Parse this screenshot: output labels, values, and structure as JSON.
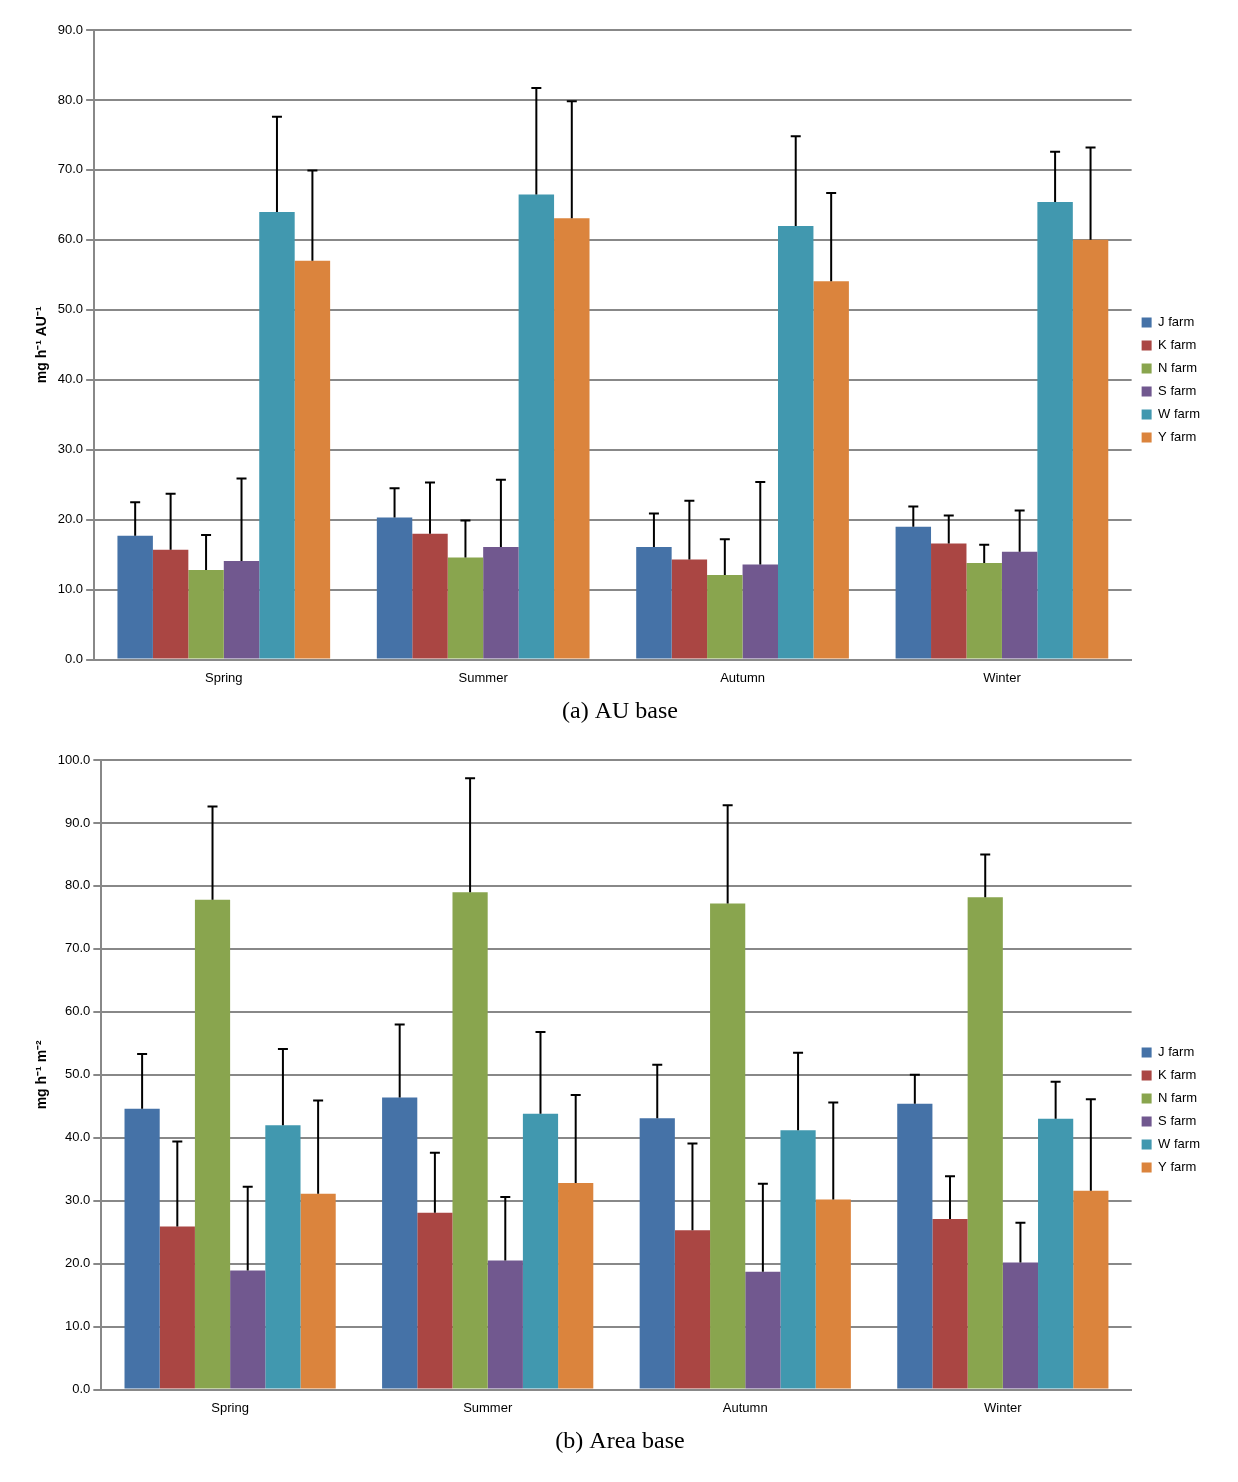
{
  "chart_data": [
    {
      "type": "bar",
      "title": "(a) AU base",
      "y_label": "mg h⁻¹ AU⁻¹",
      "categories": [
        "Spring",
        "Summer",
        "Autumn",
        "Winter"
      ],
      "series": [
        {
          "name": "J farm",
          "color": "#4572A7",
          "values": [
            17.7,
            20.3,
            16.1,
            19.0
          ],
          "errors": [
            4.8,
            4.2,
            4.8,
            2.9
          ]
        },
        {
          "name": "K farm",
          "color": "#AA4643",
          "values": [
            15.7,
            18.0,
            14.3,
            16.6
          ],
          "errors": [
            8.0,
            7.3,
            8.4,
            4.0
          ]
        },
        {
          "name": "N farm",
          "color": "#89A54E",
          "values": [
            12.8,
            14.6,
            12.1,
            13.8
          ],
          "errors": [
            5.0,
            5.3,
            5.1,
            2.6
          ]
        },
        {
          "name": "S farm",
          "color": "#71588F",
          "values": [
            14.1,
            16.1,
            13.6,
            15.4
          ],
          "errors": [
            11.8,
            9.6,
            11.8,
            5.9
          ]
        },
        {
          "name": "W farm",
          "color": "#4198AF",
          "values": [
            64.0,
            66.5,
            62.0,
            65.4
          ],
          "errors": [
            13.6,
            15.2,
            12.8,
            7.2
          ]
        },
        {
          "name": "Y farm",
          "color": "#DB843D",
          "values": [
            57.0,
            63.1,
            54.1,
            60.0
          ],
          "errors": [
            12.9,
            16.7,
            12.6,
            13.2
          ]
        }
      ],
      "ylim": [
        0,
        90
      ],
      "yticks": [
        {
          "value": 0,
          "label": "0.0"
        },
        {
          "value": 10,
          "label": "10.0"
        },
        {
          "value": 20,
          "label": "20.0"
        },
        {
          "value": 30,
          "label": "30.0"
        },
        {
          "value": 40,
          "label": "40.0"
        },
        {
          "value": 50,
          "label": "50.0"
        },
        {
          "value": 60,
          "label": "60.0"
        },
        {
          "value": 70,
          "label": "70.0"
        },
        {
          "value": 80,
          "label": "80.0"
        },
        {
          "value": 90,
          "label": "90.0"
        }
      ],
      "grid": true,
      "legend": "right"
    },
    {
      "type": "bar",
      "title": "(b) Area base",
      "y_label": "mg h⁻¹ m⁻²",
      "categories": [
        "Spring",
        "Summer",
        "Autumn",
        "Winter"
      ],
      "series": [
        {
          "name": "J farm",
          "color": "#4572A7",
          "values": [
            44.6,
            46.4,
            43.1,
            45.4
          ],
          "errors": [
            8.7,
            11.6,
            8.5,
            4.6
          ]
        },
        {
          "name": "K farm",
          "color": "#AA4643",
          "values": [
            25.9,
            28.1,
            25.3,
            27.1
          ],
          "errors": [
            13.5,
            9.5,
            13.8,
            6.8
          ]
        },
        {
          "name": "N farm",
          "color": "#89A54E",
          "values": [
            77.8,
            79.0,
            77.2,
            78.2
          ],
          "errors": [
            14.8,
            18.1,
            15.6,
            6.8
          ]
        },
        {
          "name": "S farm",
          "color": "#71588F",
          "values": [
            18.9,
            20.5,
            18.7,
            20.2
          ],
          "errors": [
            13.3,
            10.1,
            14.0,
            6.3
          ]
        },
        {
          "name": "W farm",
          "color": "#4198AF",
          "values": [
            42.0,
            43.8,
            41.2,
            43.0
          ],
          "errors": [
            12.1,
            13.0,
            12.3,
            5.9
          ]
        },
        {
          "name": "Y farm",
          "color": "#DB843D",
          "values": [
            31.1,
            32.8,
            30.2,
            31.6
          ],
          "errors": [
            14.8,
            14.0,
            15.4,
            14.5
          ]
        }
      ],
      "ylim": [
        0,
        100
      ],
      "yticks": [
        {
          "value": 0,
          "label": "0.0"
        },
        {
          "value": 10,
          "label": "10.0"
        },
        {
          "value": 20,
          "label": "20.0"
        },
        {
          "value": 30,
          "label": "30.0"
        },
        {
          "value": 40,
          "label": "40.0"
        },
        {
          "value": 50,
          "label": "50.0"
        },
        {
          "value": 60,
          "label": "60.0"
        },
        {
          "value": 70,
          "label": "70.0"
        },
        {
          "value": 80,
          "label": "80.0"
        },
        {
          "value": 90,
          "label": "90.0"
        },
        {
          "value": 100,
          "label": "100.0"
        }
      ],
      "grid": true,
      "legend": "right"
    }
  ]
}
